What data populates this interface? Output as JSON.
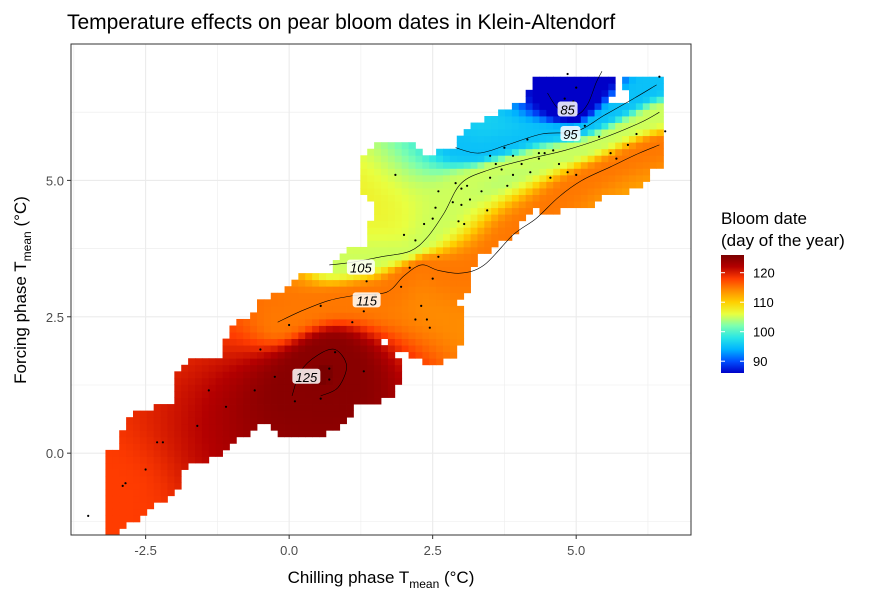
{
  "chart_data": {
    "type": "heatmap",
    "title": "Temperature effects on pear bloom dates in Klein-Altendorf",
    "xlabel": {
      "main": "Chilling phase T",
      "sub": "mean",
      "unit": " (°C)"
    },
    "ylabel": {
      "main": "Forcing phase T",
      "sub": "mean",
      "unit": " (°C)"
    },
    "xlim": [
      -3.8,
      7.0
    ],
    "ylim": [
      -1.5,
      7.5
    ],
    "x_ticks": [
      {
        "value": -2.5,
        "label": "-2.5"
      },
      {
        "value": 0.0,
        "label": "0.0"
      },
      {
        "value": 2.5,
        "label": "2.5"
      },
      {
        "value": 5.0,
        "label": "5.0"
      }
    ],
    "y_ticks": [
      {
        "value": 0.0,
        "label": "0.0"
      },
      {
        "value": 2.5,
        "label": "2.5"
      },
      {
        "value": 5.0,
        "label": "5.0"
      }
    ],
    "grid": true,
    "legend": {
      "title_line1": "Bloom date",
      "title_line2": "(day of the year)",
      "placement": "right",
      "range": [
        86,
        126
      ],
      "ticks": [
        {
          "value": 120,
          "label": "120"
        },
        {
          "value": 110,
          "label": "110"
        },
        {
          "value": 100,
          "label": "100"
        },
        {
          "value": 90,
          "label": "90"
        }
      ],
      "colors": [
        "#0000c8",
        "#0050ff",
        "#00b4ff",
        "#29e6e6",
        "#7cffb0",
        "#e8ff40",
        "#ffd000",
        "#ff8c00",
        "#ff3c00",
        "#b40000",
        "#7a0000"
      ]
    },
    "contour_labels": [
      {
        "value": "85",
        "x": 4.85,
        "y": 6.3
      },
      {
        "value": "95",
        "x": 4.9,
        "y": 5.85
      },
      {
        "value": "105",
        "x": 1.25,
        "y": 3.4
      },
      {
        "value": "115",
        "x": 1.35,
        "y": 2.8
      },
      {
        "value": "125",
        "x": 0.3,
        "y": 1.4
      }
    ],
    "contours": [
      {
        "level": 85,
        "points": [
          [
            4.5,
            6.6
          ],
          [
            4.7,
            6.3
          ],
          [
            5.0,
            6.2
          ],
          [
            5.2,
            6.4
          ],
          [
            5.35,
            6.8
          ],
          [
            5.45,
            7.0
          ]
        ]
      },
      {
        "level": 95,
        "points": [
          [
            2.9,
            5.6
          ],
          [
            3.3,
            5.5
          ],
          [
            3.8,
            5.65
          ],
          [
            4.4,
            5.85
          ],
          [
            5.0,
            5.9
          ],
          [
            5.5,
            6.2
          ],
          [
            6.0,
            6.5
          ],
          [
            6.4,
            6.75
          ]
        ]
      },
      {
        "level": 105,
        "points": [
          [
            0.7,
            3.45
          ],
          [
            1.1,
            3.5
          ],
          [
            1.6,
            3.6
          ],
          [
            2.1,
            3.7
          ],
          [
            2.4,
            3.95
          ],
          [
            2.7,
            4.4
          ],
          [
            3.0,
            4.95
          ],
          [
            3.5,
            5.2
          ],
          [
            4.2,
            5.4
          ],
          [
            4.8,
            5.55
          ],
          [
            5.4,
            5.75
          ],
          [
            6.1,
            6.05
          ],
          [
            6.45,
            6.25
          ]
        ]
      },
      {
        "level": 115,
        "points": [
          [
            -0.2,
            2.4
          ],
          [
            0.2,
            2.6
          ],
          [
            0.7,
            2.8
          ],
          [
            1.2,
            2.9
          ],
          [
            1.7,
            2.95
          ],
          [
            2.0,
            3.25
          ],
          [
            2.3,
            3.45
          ],
          [
            2.6,
            3.35
          ],
          [
            3.0,
            3.3
          ],
          [
            3.4,
            3.45
          ],
          [
            3.9,
            4.0
          ],
          [
            4.3,
            4.3
          ],
          [
            4.7,
            4.7
          ],
          [
            5.1,
            5.0
          ],
          [
            5.6,
            5.25
          ],
          [
            6.1,
            5.5
          ],
          [
            6.45,
            5.65
          ]
        ]
      },
      {
        "level": 125,
        "points": [
          [
            0.05,
            1.05
          ],
          [
            0.2,
            1.5
          ],
          [
            0.5,
            1.8
          ],
          [
            0.8,
            1.9
          ],
          [
            1.0,
            1.6
          ],
          [
            0.85,
            1.2
          ],
          [
            0.55,
            1.05
          ]
        ]
      }
    ],
    "points": [
      [
        -3.5,
        -1.15
      ],
      [
        -2.9,
        -0.6
      ],
      [
        -2.5,
        -0.3
      ],
      [
        -2.2,
        0.2
      ],
      [
        -1.6,
        0.5
      ],
      [
        -1.1,
        0.85
      ],
      [
        -0.6,
        1.15
      ],
      [
        -0.25,
        1.4
      ],
      [
        0.1,
        0.95
      ],
      [
        0.55,
        1.0
      ],
      [
        0.7,
        1.55
      ],
      [
        0.8,
        1.85
      ],
      [
        0.7,
        1.35
      ],
      [
        1.3,
        1.5
      ],
      [
        1.1,
        2.4
      ],
      [
        1.3,
        2.6
      ],
      [
        1.5,
        2.9
      ],
      [
        1.5,
        2.75
      ],
      [
        1.95,
        3.05
      ],
      [
        2.2,
        2.45
      ],
      [
        2.4,
        2.45
      ],
      [
        2.45,
        2.3
      ],
      [
        2.5,
        3.2
      ],
      [
        2.6,
        3.6
      ],
      [
        2.2,
        3.9
      ],
      [
        2.35,
        4.2
      ],
      [
        2.5,
        4.3
      ],
      [
        2.55,
        4.5
      ],
      [
        2.6,
        4.8
      ],
      [
        2.85,
        4.6
      ],
      [
        2.9,
        4.95
      ],
      [
        3.0,
        4.85
      ],
      [
        3.1,
        4.9
      ],
      [
        3.15,
        4.65
      ],
      [
        2.95,
        4.25
      ],
      [
        3.05,
        4.2
      ],
      [
        3.35,
        4.8
      ],
      [
        3.45,
        4.45
      ],
      [
        3.5,
        5.05
      ],
      [
        3.6,
        5.3
      ],
      [
        3.7,
        5.2
      ],
      [
        3.8,
        4.9
      ],
      [
        3.9,
        5.1
      ],
      [
        4.05,
        5.3
      ],
      [
        4.2,
        5.15
      ],
      [
        4.35,
        5.4
      ],
      [
        4.45,
        5.5
      ],
      [
        4.55,
        5.05
      ],
      [
        4.7,
        5.3
      ],
      [
        4.85,
        5.15
      ],
      [
        5.0,
        5.1
      ],
      [
        3.5,
        5.45
      ],
      [
        3.75,
        5.6
      ],
      [
        3.9,
        5.45
      ],
      [
        4.15,
        5.75
      ],
      [
        4.35,
        5.5
      ],
      [
        4.6,
        5.55
      ],
      [
        4.95,
        5.75
      ],
      [
        5.15,
        6.0
      ],
      [
        4.7,
        6.25
      ],
      [
        4.9,
        6.35
      ],
      [
        4.95,
        6.45
      ],
      [
        4.8,
        6.5
      ],
      [
        4.85,
        6.95
      ],
      [
        5.0,
        6.7
      ],
      [
        5.4,
        5.8
      ],
      [
        5.7,
        5.4
      ],
      [
        5.9,
        5.65
      ],
      [
        6.05,
        5.85
      ],
      [
        5.6,
        5.5
      ],
      [
        6.45,
        6.9
      ],
      [
        6.55,
        5.9
      ],
      [
        3.0,
        4.55
      ],
      [
        2.1,
        3.4
      ],
      [
        1.35,
        3.15
      ],
      [
        0.55,
        2.7
      ],
      [
        0.0,
        2.35
      ],
      [
        -0.5,
        1.9
      ],
      [
        -1.4,
        1.15
      ],
      [
        -2.3,
        0.2
      ],
      [
        -2.85,
        -0.55
      ],
      [
        2.3,
        2.7
      ],
      [
        2.0,
        4.0
      ],
      [
        1.85,
        5.1
      ]
    ]
  }
}
